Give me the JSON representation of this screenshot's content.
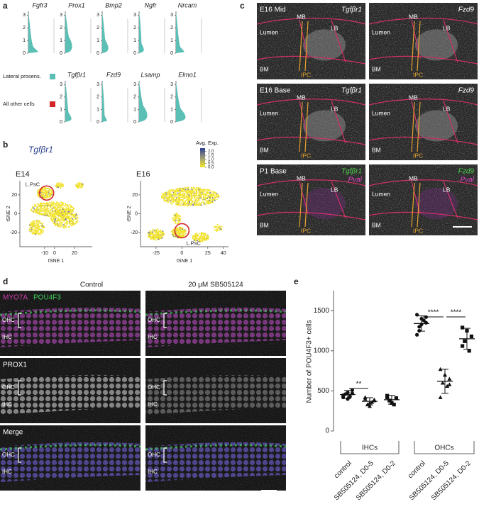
{
  "panels": {
    "a": {
      "label": "a",
      "rows": [
        [
          "Fgfr3",
          "Prox1",
          "Bmp2",
          "Ngfr",
          "Nrcam"
        ],
        [
          "Tgfβr1",
          "Fzd9",
          "Lsamp",
          "Elmo1"
        ]
      ],
      "ylim": [
        0,
        3.3
      ],
      "yticks": [
        0,
        1,
        2,
        3
      ],
      "legend": [
        {
          "name": "Lateral prosens.",
          "color": "#5bbfb5"
        },
        {
          "name": "All other cells",
          "color": "#d62728"
        }
      ]
    },
    "b": {
      "label": "b",
      "gene": "Tgfβr1",
      "colorbar": {
        "title": "Avg. Exp.",
        "lim": [
          0,
          2.4
        ],
        "ticks": [
          {
            "value": 0,
            "label": "0.0"
          },
          {
            "value": 0.5,
            "label": "0.5"
          },
          {
            "value": 1,
            "label": "1.0"
          },
          {
            "value": 1.5,
            "label": "1.5"
          },
          {
            "value": 2,
            "label": "2.0"
          }
        ]
      },
      "plots": [
        {
          "title": "E14",
          "xlabel": "tSNE 1",
          "ylabel": "tSNE 2",
          "xlim": [
            -35,
            38
          ],
          "xticks": [
            -10,
            0,
            20
          ],
          "ylim": [
            -35,
            35
          ],
          "yticks": [
            -20,
            0,
            20
          ],
          "annotation": "L.PsC"
        },
        {
          "title": "E16",
          "xlabel": "tSNE 1",
          "ylabel": "tSNE 2",
          "xlim": [
            -40,
            45
          ],
          "xticks": [
            -25,
            0,
            25,
            40
          ],
          "ylim": [
            -35,
            35
          ],
          "yticks": [
            -20,
            0,
            20
          ],
          "annotation": "L.PsC"
        }
      ]
    },
    "c": {
      "label": "c",
      "rows": [
        {
          "title": "E16 Mid",
          "images": [
            [
              "Tgfβr1"
            ],
            [
              "Fzd9"
            ]
          ]
        },
        {
          "title": "E16 Base",
          "images": [
            [
              "Tgfβr1"
            ],
            [
              "Fzd9"
            ]
          ]
        },
        {
          "title": "P1 Base",
          "images": [
            [
              "Tgfβr1",
              "Pval"
            ],
            [
              "Fzd9",
              "Pval"
            ]
          ]
        }
      ],
      "regions": [
        "Lumen",
        "MB",
        "LB",
        "BM",
        "IPC"
      ]
    },
    "d": {
      "label": "d",
      "columns": [
        "Control",
        "20 μM SB505124"
      ],
      "rows": [
        [
          "MYO7A",
          "POU4F3"
        ],
        [
          "PROX1"
        ],
        [
          "Merge"
        ]
      ],
      "ohc": "OHC",
      "ihc": "IHC"
    },
    "e": {
      "label": "e",
      "ylabel": "Number of POU4F3+ cells",
      "ylim": [
        0,
        1750
      ],
      "yticks": [
        0,
        500,
        1000,
        1500
      ],
      "groups": [
        "IHCs",
        "OHCs"
      ],
      "series": [
        {
          "name": "control",
          "marker": "circle",
          "mean": 455,
          "sd": 50,
          "values": [
            420,
            480,
            510,
            460,
            430,
            445,
            400,
            470
          ]
        },
        {
          "name": "SB505124, D0-5",
          "marker": "triangle",
          "mean": 370,
          "sd": 45,
          "values": [
            420,
            350,
            380,
            330,
            360,
            400,
            310,
            390
          ]
        },
        {
          "name": "SB505124, D0-2",
          "marker": "square",
          "mean": 390,
          "sd": 55,
          "values": [
            440,
            350,
            410,
            380,
            330,
            420
          ]
        },
        {
          "name": "control",
          "marker": "circle",
          "mean": 1340,
          "sd": 95,
          "values": [
            1450,
            1400,
            1350,
            1300,
            1380,
            1200,
            1330,
            1420,
            1250
          ]
        },
        {
          "name": "SB505124, D0-5",
          "marker": "triangle",
          "mean": 620,
          "sd": 150,
          "values": [
            770,
            700,
            650,
            600,
            560,
            420,
            700,
            580
          ]
        },
        {
          "name": "SB505124, D0-2",
          "marker": "square",
          "mean": 1150,
          "sd": 130,
          "values": [
            1290,
            1250,
            1180,
            1120,
            1000,
            1060
          ]
        }
      ],
      "significance": [
        "**",
        "****",
        "****"
      ]
    }
  }
}
